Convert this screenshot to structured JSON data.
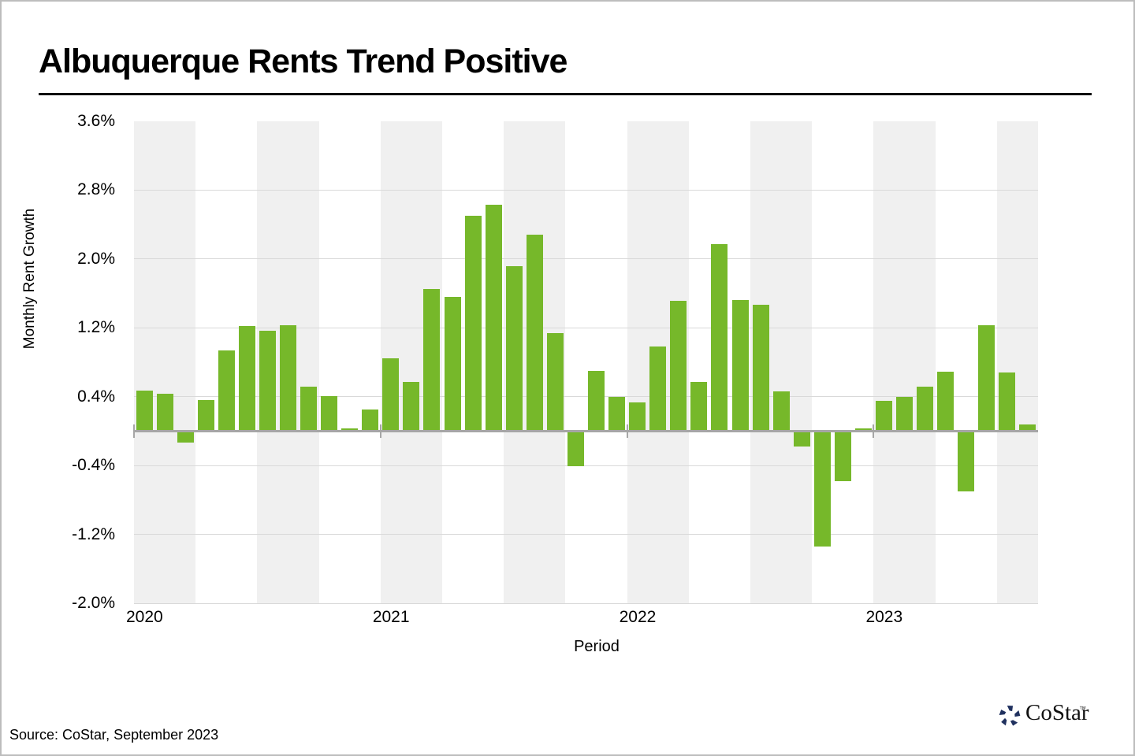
{
  "title": "Albuquerque Rents Trend Positive",
  "source_note": "Source: CoStar, September 2023",
  "logo": {
    "name": "CoStar",
    "trademark": "™",
    "icon_color": "#20315f"
  },
  "y_axis": {
    "label": "Monthly Rent Growth",
    "ticks": [
      "3.6%",
      "2.8%",
      "2.0%",
      "1.2%",
      "0.4%",
      "-0.4%",
      "-1.2%",
      "-2.0%"
    ]
  },
  "x_axis": {
    "label": "Period",
    "years": [
      "2020",
      "2021",
      "2022",
      "2023"
    ]
  },
  "colors": {
    "bar": "#76b82a",
    "stripe": "#f0f0f0",
    "gridline": "#d9d9d9",
    "axis_line": "#a6a6a6"
  },
  "chart_data": {
    "type": "bar",
    "title": "Albuquerque Rents Trend Positive",
    "xlabel": "Period",
    "ylabel": "Monthly Rent Growth",
    "y_unit": "%",
    "ylim": [
      -2.0,
      3.6
    ],
    "y_tick_step": 0.8,
    "grid": "horizontal",
    "legend": "none",
    "background_stripes": "alternating quarterly gray/white",
    "bar_color": "#76b82a",
    "x": [
      "2020-01",
      "2020-02",
      "2020-03",
      "2020-04",
      "2020-05",
      "2020-06",
      "2020-07",
      "2020-08",
      "2020-09",
      "2020-10",
      "2020-11",
      "2020-12",
      "2021-01",
      "2021-02",
      "2021-03",
      "2021-04",
      "2021-05",
      "2021-06",
      "2021-07",
      "2021-08",
      "2021-09",
      "2021-10",
      "2021-11",
      "2021-12",
      "2022-01",
      "2022-02",
      "2022-03",
      "2022-04",
      "2022-05",
      "2022-06",
      "2022-07",
      "2022-08",
      "2022-09",
      "2022-10",
      "2022-11",
      "2022-12",
      "2023-01",
      "2023-02",
      "2023-03",
      "2023-04",
      "2023-05",
      "2023-06",
      "2023-07",
      "2023-08"
    ],
    "values": [
      0.47,
      0.43,
      -0.13,
      0.36,
      0.94,
      1.22,
      1.17,
      1.23,
      0.52,
      0.41,
      0.03,
      0.25,
      0.85,
      0.57,
      1.65,
      1.56,
      2.5,
      2.63,
      1.92,
      2.28,
      1.14,
      -0.41,
      0.7,
      0.4,
      0.33,
      0.98,
      1.51,
      0.57,
      2.17,
      1.52,
      1.47,
      0.46,
      -0.18,
      -1.34,
      -0.58,
      0.03,
      0.35,
      0.4,
      0.52,
      0.69,
      -0.7,
      1.23,
      0.68,
      0.08
    ]
  }
}
